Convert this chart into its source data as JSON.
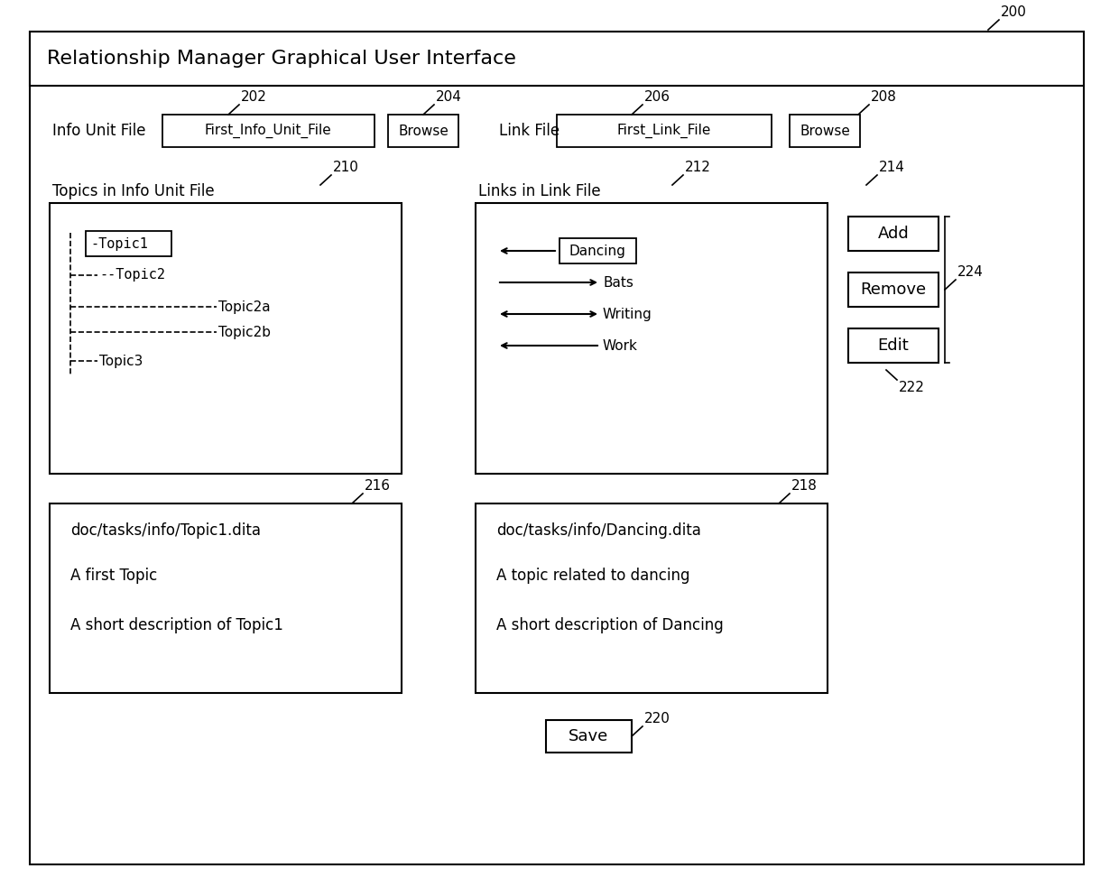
{
  "title": "Relationship Manager Graphical User Interface",
  "bg_color": "#ffffff",
  "label_200": "200",
  "label_202": "202",
  "label_204": "204",
  "label_206": "206",
  "label_208": "208",
  "label_210": "210",
  "label_212": "212",
  "label_214": "214",
  "label_216": "216",
  "label_218": "218",
  "label_220": "220",
  "label_222": "222",
  "label_224": "224",
  "info_unit_label": "Info Unit File",
  "info_unit_field": "First_Info_Unit_File",
  "browse1_label": "Browse",
  "link_file_label": "Link File",
  "link_file_field": "First_Link_File",
  "browse2_label": "Browse",
  "topics_label": "Topics in Info Unit File",
  "links_label": "Links in Link File",
  "topic1": "-Topic1",
  "topic2": "--Topic2",
  "topic2a": "--------------Topic2a",
  "topic2b": "--------------Topic2b",
  "topic3": "--Topic3",
  "dancing_label": "Dancing",
  "bats_label": "Bats",
  "writing_label": "Writing",
  "work_label": "Work",
  "add_label": "Add",
  "remove_label": "Remove",
  "edit_label": "Edit",
  "info_box_line1": "doc/tasks/info/Topic1.dita",
  "info_box_line2": "A first Topic",
  "info_box_line3": "A short description of Topic1",
  "link_box_line1": "doc/tasks/info/Dancing.dita",
  "link_box_line2": "A topic related to dancing",
  "link_box_line3": "A short description of Dancing",
  "save_label": "Save"
}
